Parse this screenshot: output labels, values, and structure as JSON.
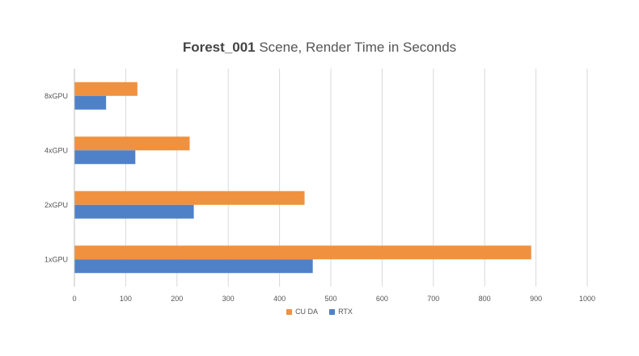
{
  "chart_data": {
    "type": "bar",
    "orientation": "horizontal",
    "title_bold": "Forest_001",
    "title_rest": " Scene, Render Time in Seconds",
    "categories": [
      "1xGPU",
      "2xGPU",
      "4xGPU",
      "8xGPU"
    ],
    "series": [
      {
        "name": "CU DA",
        "color": "#F0913F",
        "values": [
          890,
          448,
          224,
          122
        ]
      },
      {
        "name": "RTX",
        "color": "#4F81C9",
        "values": [
          464,
          232,
          118,
          61
        ]
      }
    ],
    "xlim": [
      0,
      1000
    ],
    "xticks": [
      0,
      100,
      200,
      300,
      400,
      500,
      600,
      700,
      800,
      900,
      1000
    ],
    "xlabel": "",
    "ylabel": "",
    "grid": "vertical",
    "legend_position": "bottom",
    "gridline_color": "#D9D9D9"
  }
}
